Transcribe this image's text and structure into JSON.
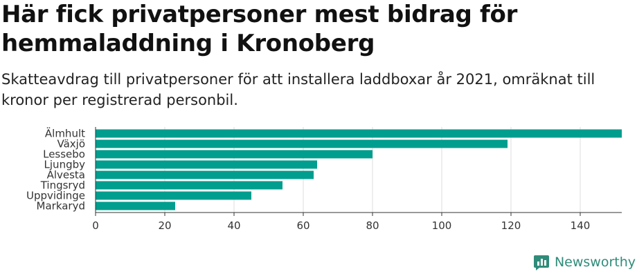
{
  "header": {
    "title": "Här fick privatpersoner mest bidrag för hemmaladdning i Kronoberg",
    "subtitle": "Skatteavdrag till privatpersoner för att installera laddboxar år 2021, omräknat till kronor per registrerad personbil."
  },
  "brand": {
    "name": "Newsworthy",
    "icon": "newsworthy-logo-icon",
    "color": "#2f8c7a"
  },
  "colors": {
    "bar": "#009e8e",
    "grid": "#dcdcdc",
    "axis": "#333333"
  },
  "chart_data": {
    "type": "bar",
    "orientation": "horizontal",
    "categories": [
      "Älmhult",
      "Växjö",
      "Lessebo",
      "Ljungby",
      "Alvesta",
      "Tingsryd",
      "Uppvidinge",
      "Markaryd"
    ],
    "values": [
      152,
      119,
      80,
      64,
      63,
      54,
      45,
      23
    ],
    "xlim": [
      0,
      152
    ],
    "xticks": [
      0,
      20,
      40,
      60,
      80,
      100,
      120,
      140
    ],
    "grid": true
  }
}
